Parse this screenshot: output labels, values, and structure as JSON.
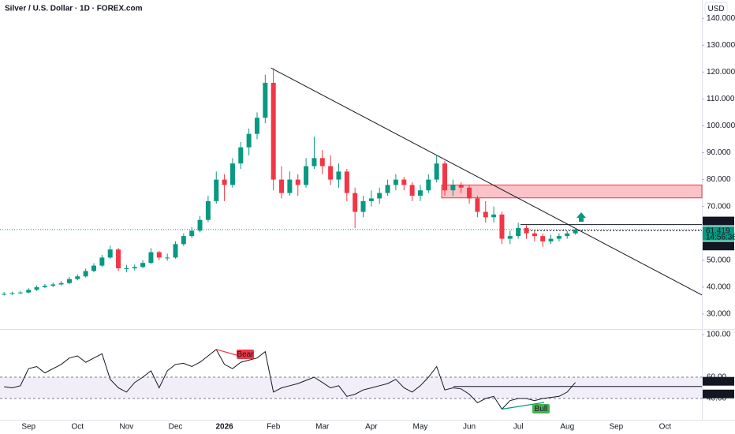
{
  "chart_data": [
    {
      "type": "candlestick",
      "title": "Silver / U.S. Dollar · 1D · FOREX.com",
      "currency": "USD",
      "categories": [
        null,
        null,
        null,
        "Sep",
        null,
        null,
        null,
        null,
        null,
        "Oct",
        null,
        null,
        null,
        null,
        null,
        "Nov",
        null,
        null,
        null,
        null,
        null,
        "Dec",
        null,
        null,
        null,
        null,
        null,
        "2026",
        null,
        null,
        null,
        null,
        null,
        "Feb",
        null,
        null,
        null,
        null,
        null,
        "Mar",
        null,
        null,
        null,
        null,
        null,
        "Apr",
        null,
        null,
        null,
        null,
        null,
        "May",
        null,
        null,
        null,
        null,
        null,
        "Jun",
        null,
        null,
        null,
        null,
        null,
        "Jul",
        null,
        null,
        null,
        null,
        null,
        "Aug",
        null,
        null,
        null,
        null,
        null,
        "Sep",
        null,
        null,
        null,
        null,
        null,
        "Oct",
        null,
        null,
        null,
        null
      ],
      "open": [
        37.3,
        37.5,
        37.8,
        38,
        39,
        40,
        40.5,
        41,
        41.5,
        43,
        44,
        46,
        48,
        51,
        54,
        47,
        47,
        47.5,
        49,
        53,
        51,
        51,
        56,
        59,
        61,
        65,
        72,
        80,
        78,
        86,
        92,
        97,
        103,
        116,
        80,
        75,
        80,
        78,
        85,
        88,
        85,
        80,
        83,
        75,
        68,
        72,
        73,
        75,
        78,
        80,
        78,
        74,
        76,
        80,
        86,
        76,
        78,
        77,
        73,
        68,
        66,
        67,
        58,
        59,
        62,
        60,
        59,
        57,
        58,
        59,
        60,
        null,
        null,
        null,
        null,
        null,
        null,
        null,
        null,
        null,
        null,
        null,
        null,
        null,
        null,
        null
      ],
      "high": [
        38.2,
        38.3,
        38.6,
        39.6,
        40.6,
        41.2,
        41.7,
        42.2,
        43.8,
        44.8,
        46.9,
        48.9,
        52,
        55.4,
        54.6,
        48.3,
        48.4,
        50,
        54.5,
        53.5,
        52.5,
        57,
        60,
        62.3,
        66.5,
        74,
        83,
        82,
        88,
        94,
        99,
        105,
        119,
        121.5,
        85,
        83,
        82,
        88,
        96,
        91,
        89,
        86,
        84,
        77,
        74,
        76,
        77,
        80,
        82,
        81,
        79,
        78,
        82,
        89,
        87,
        80,
        79,
        78,
        74,
        72,
        70,
        68,
        61,
        64,
        63,
        61,
        60,
        59.5,
        60,
        60.8,
        62,
        null,
        null,
        null,
        null,
        null,
        null,
        null,
        null,
        null,
        null,
        null,
        null,
        null,
        null,
        null
      ],
      "low": [
        36.9,
        37.1,
        37.4,
        37.7,
        38.6,
        39.6,
        40,
        40.6,
        41.1,
        42.5,
        43.6,
        45.5,
        47.5,
        50.5,
        46,
        45.5,
        46.2,
        47,
        48.6,
        50,
        49.8,
        50.6,
        55.3,
        58.2,
        60.4,
        64.2,
        71,
        72,
        77,
        84,
        89,
        95,
        101,
        76,
        73,
        74,
        74,
        77,
        84,
        82,
        78,
        77,
        72,
        62,
        66,
        70,
        71,
        74,
        76,
        76,
        72,
        72,
        75,
        79,
        74,
        74,
        75,
        71,
        66,
        64,
        64,
        56,
        56,
        58,
        58,
        57,
        55,
        56,
        57,
        58,
        59.5,
        null,
        null,
        null,
        null,
        null,
        null,
        null,
        null,
        null,
        null,
        null,
        null,
        null,
        null,
        null
      ],
      "close": [
        37.5,
        37.8,
        38,
        39,
        40,
        40.5,
        41,
        41.5,
        43,
        44,
        46,
        48,
        51,
        54,
        47,
        47,
        47.5,
        49,
        53,
        51,
        51,
        56,
        59,
        61,
        65,
        72,
        80,
        78,
        86,
        92,
        97,
        103,
        116,
        80,
        75,
        80,
        78,
        85,
        88,
        85,
        80,
        83,
        75,
        68,
        72,
        73,
        75,
        78,
        80,
        78,
        74,
        76,
        80,
        86,
        76,
        78,
        77,
        73,
        68,
        66,
        67,
        58,
        59,
        62,
        60,
        59,
        57,
        58,
        59,
        60,
        61.419,
        null,
        null,
        null,
        null,
        null,
        null,
        null,
        null,
        null,
        null,
        null,
        null,
        null,
        null,
        null
      ],
      "up_color": "#089981",
      "down_color": "#f23645",
      "ylim": [
        24.7,
        146.8
      ],
      "yticks": [
        {
          "value": 140,
          "label": "140.000"
        },
        {
          "value": 130,
          "label": "130.000"
        },
        {
          "value": 120,
          "label": "120.000"
        },
        {
          "value": 110,
          "label": "110.000"
        },
        {
          "value": 100,
          "label": "100.000"
        },
        {
          "value": 90,
          "label": "90.000"
        },
        {
          "value": 80,
          "label": "80.000"
        },
        {
          "value": 70,
          "label": "70.000"
        },
        {
          "value": 60,
          "label": "60.000"
        },
        {
          "value": 50,
          "label": "50.000"
        },
        {
          "value": 40,
          "label": "40.000"
        },
        {
          "value": 30,
          "label": "30.000"
        }
      ],
      "grid": false,
      "countdown": "14:56:36",
      "levels": [
        63.274,
        61.028
      ],
      "zone": [
        73.2,
        78
      ],
      "zone_color": "#f23645",
      "trendline": [
        121.5,
        37.1
      ]
    },
    {
      "type": "line",
      "values": [
        51,
        50,
        52,
        68,
        70,
        64,
        68,
        72,
        78,
        80,
        74,
        78,
        82,
        58,
        50,
        46,
        55,
        60,
        66,
        50,
        66,
        72,
        73,
        70,
        74,
        80,
        86,
        72,
        68,
        74,
        76,
        78,
        84,
        46,
        50,
        52,
        54,
        57,
        60,
        55,
        50,
        52,
        42,
        44,
        48,
        50,
        52,
        54,
        58,
        50,
        46,
        52,
        60,
        70,
        48,
        50,
        49,
        44,
        36,
        40,
        42,
        30,
        38,
        40,
        40,
        38,
        40,
        41,
        42,
        46,
        55.01,
        null,
        null,
        null,
        null,
        null,
        null,
        null,
        null,
        null,
        null,
        null,
        null,
        null,
        null,
        null
      ],
      "color": "#131722",
      "ylim": [
        20,
        104.4
      ],
      "yticks": [
        {
          "value": 100,
          "label": "100.00"
        },
        {
          "value": 60,
          "label": "60.00"
        },
        {
          "value": 40,
          "label": "40.00"
        }
      ],
      "band": [
        40,
        60
      ],
      "level": 51.27,
      "annotations": [
        "Bear",
        "Bull"
      ]
    }
  ]
}
